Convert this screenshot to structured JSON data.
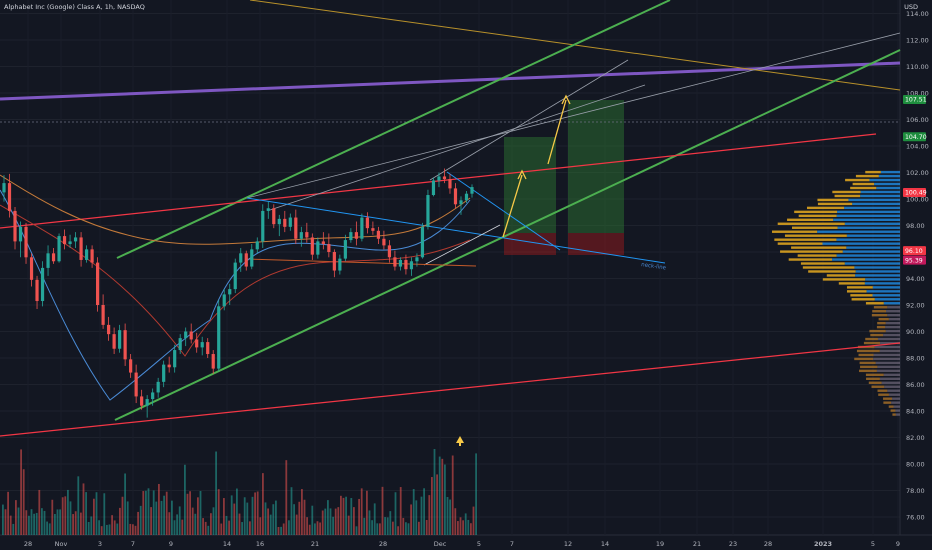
{
  "header": {
    "title": "Alphabet Inc (Google) Class A, 1h, NASDAQ",
    "currency": "USD"
  },
  "colors": {
    "background": "#131722",
    "up": "#26a69a",
    "down": "#ef5350",
    "channel": "#4caf50",
    "purple": "#7e57c2",
    "pink": "#f23645",
    "blue": "#2196f3",
    "orange": "#ff9800",
    "yellow": "#f7c948"
  },
  "chart_data": {
    "type": "candlestick",
    "yaxis": {
      "ticks": [
        "114.00",
        "112.00",
        "110.00",
        "108.00",
        "106.00",
        "104.00",
        "102.00",
        "100.00",
        "98.00",
        "96.00",
        "94.00",
        "92.00",
        "90.00",
        "88.00",
        "86.00",
        "84.00",
        "82.00",
        "80.00",
        "78.00",
        "76.00"
      ],
      "ylim": [
        75,
        115
      ]
    },
    "xaxis": {
      "ticks": [
        "28",
        "Nov",
        "3",
        "7",
        "9",
        "14",
        "16",
        "21",
        "28",
        "Dec",
        "5",
        "7",
        "12",
        "14",
        "19",
        "21",
        "23",
        "28",
        "2023",
        "5",
        "9"
      ]
    },
    "price_tags": [
      {
        "label": "107.51",
        "value": 107.51,
        "color": "#1e8e3e"
      },
      {
        "label": "104.70",
        "value": 104.7,
        "color": "#1e8e3e"
      },
      {
        "label": "100.49",
        "value": 100.49,
        "color": "#f23645"
      },
      {
        "label": "96.10",
        "value": 96.1,
        "color": "#f23645"
      },
      {
        "label": "95.39",
        "value": 95.39,
        "color": "#c2185b"
      }
    ],
    "annotation": "neck-line",
    "candles": [
      [
        100.5,
        101.8,
        99.8,
        101.2
      ],
      [
        101.2,
        101.9,
        98.6,
        99.1
      ],
      [
        99.1,
        99.4,
        96.2,
        96.8
      ],
      [
        96.8,
        98.3,
        95.6,
        97.9
      ],
      [
        97.9,
        98.2,
        95.1,
        95.6
      ],
      [
        95.6,
        95.9,
        93.4,
        93.9
      ],
      [
        93.9,
        94.2,
        91.7,
        92.3
      ],
      [
        92.3,
        95.3,
        91.9,
        94.8
      ],
      [
        94.8,
        96.5,
        94.2,
        95.9
      ],
      [
        95.9,
        96.3,
        95.1,
        95.3
      ],
      [
        95.3,
        97.4,
        95.2,
        97.2
      ],
      [
        97.2,
        97.7,
        96.2,
        96.6
      ],
      [
        96.6,
        97.3,
        96.3,
        96.8
      ],
      [
        96.8,
        97.5,
        96.3,
        97.1
      ],
      [
        97.1,
        97.5,
        94.9,
        95.4
      ],
      [
        95.4,
        96.5,
        95.2,
        96.2
      ],
      [
        96.2,
        96.5,
        94.8,
        95.2
      ],
      [
        95.2,
        95.6,
        91.5,
        92.0
      ],
      [
        92.0,
        92.8,
        90.2,
        90.5
      ],
      [
        90.5,
        91.1,
        89.3,
        89.8
      ],
      [
        89.8,
        90.3,
        88.3,
        88.7
      ],
      [
        88.7,
        90.5,
        88.4,
        90.1
      ],
      [
        90.1,
        90.6,
        87.4,
        87.9
      ],
      [
        87.9,
        88.3,
        86.5,
        86.9
      ],
      [
        86.9,
        87.5,
        84.6,
        85.1
      ],
      [
        85.1,
        85.6,
        84.1,
        84.4
      ],
      [
        84.4,
        85.2,
        83.5,
        84.9
      ],
      [
        84.9,
        85.7,
        84.4,
        85.4
      ],
      [
        85.4,
        86.5,
        85.0,
        86.2
      ],
      [
        86.2,
        87.8,
        85.8,
        87.5
      ],
      [
        87.5,
        88.1,
        86.9,
        87.3
      ],
      [
        87.3,
        89.0,
        86.9,
        88.6
      ],
      [
        88.6,
        89.8,
        88.3,
        89.5
      ],
      [
        89.5,
        90.3,
        88.9,
        90.0
      ],
      [
        90.0,
        90.6,
        89.1,
        89.4
      ],
      [
        89.4,
        89.9,
        88.4,
        88.8
      ],
      [
        88.8,
        89.6,
        88.2,
        89.2
      ],
      [
        89.2,
        89.5,
        88.0,
        88.3
      ],
      [
        88.3,
        88.6,
        86.8,
        87.2
      ],
      [
        87.2,
        92.4,
        87.0,
        91.9
      ],
      [
        91.9,
        93.2,
        91.6,
        92.8
      ],
      [
        92.8,
        93.6,
        92.0,
        93.2
      ],
      [
        93.2,
        95.5,
        92.9,
        95.2
      ],
      [
        95.2,
        96.3,
        94.5,
        95.9
      ],
      [
        95.9,
        96.1,
        94.6,
        94.9
      ],
      [
        94.9,
        96.6,
        94.7,
        96.2
      ],
      [
        96.2,
        97.1,
        95.9,
        96.8
      ],
      [
        96.8,
        99.6,
        96.3,
        99.1
      ],
      [
        99.1,
        99.8,
        98.5,
        99.3
      ],
      [
        99.3,
        99.6,
        97.8,
        98.1
      ],
      [
        98.1,
        98.8,
        97.2,
        98.5
      ],
      [
        98.5,
        99.1,
        97.5,
        97.9
      ],
      [
        97.9,
        98.9,
        97.6,
        98.6
      ],
      [
        98.6,
        99.2,
        96.6,
        97.0
      ],
      [
        97.0,
        97.9,
        96.4,
        97.5
      ],
      [
        97.5,
        98.2,
        96.7,
        97.1
      ],
      [
        97.1,
        97.4,
        95.4,
        95.8
      ],
      [
        95.8,
        97.1,
        95.5,
        96.8
      ],
      [
        96.8,
        97.5,
        96.2,
        96.6
      ],
      [
        96.6,
        97.4,
        95.6,
        96.0
      ],
      [
        96.0,
        96.2,
        94.1,
        94.6
      ],
      [
        94.6,
        95.8,
        94.3,
        95.5
      ],
      [
        95.5,
        97.3,
        95.3,
        96.9
      ],
      [
        96.9,
        97.8,
        96.7,
        97.5
      ],
      [
        97.5,
        98.3,
        96.5,
        97.0
      ],
      [
        97.0,
        98.9,
        96.8,
        98.6
      ],
      [
        98.6,
        99.0,
        97.4,
        97.8
      ],
      [
        97.8,
        98.3,
        97.3,
        97.6
      ],
      [
        97.6,
        97.9,
        96.6,
        97.0
      ],
      [
        97.0,
        97.6,
        96.2,
        96.5
      ],
      [
        96.5,
        96.9,
        95.2,
        95.6
      ],
      [
        95.6,
        96.1,
        94.6,
        94.9
      ],
      [
        94.9,
        95.6,
        94.6,
        95.4
      ],
      [
        95.4,
        95.8,
        94.3,
        94.7
      ],
      [
        94.7,
        95.6,
        94.2,
        95.3
      ],
      [
        95.3,
        95.9,
        94.9,
        95.6
      ],
      [
        95.6,
        98.2,
        95.5,
        97.9
      ],
      [
        97.9,
        100.7,
        97.7,
        100.3
      ],
      [
        100.3,
        101.6,
        100.2,
        101.4
      ],
      [
        101.4,
        102.0,
        100.9,
        101.7
      ],
      [
        101.7,
        102.3,
        101.2,
        101.5
      ],
      [
        101.5,
        101.9,
        100.4,
        100.8
      ],
      [
        100.8,
        101.2,
        99.3,
        99.6
      ],
      [
        99.6,
        100.2,
        98.8,
        99.9
      ],
      [
        99.9,
        100.6,
        99.7,
        100.4
      ],
      [
        100.4,
        101.1,
        100.1,
        100.9
      ]
    ]
  }
}
